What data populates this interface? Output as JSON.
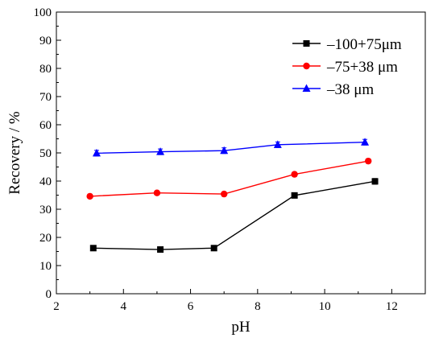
{
  "chart_data": {
    "type": "line",
    "xlabel": "pH",
    "ylabel": "Recovery / %",
    "xlim": [
      2,
      13
    ],
    "ylim": [
      0,
      100
    ],
    "xticks": [
      2,
      4,
      6,
      8,
      10,
      12
    ],
    "yticks": [
      0,
      10,
      20,
      30,
      40,
      50,
      60,
      70,
      80,
      90,
      100
    ],
    "grid": false,
    "legend_position": "top-right",
    "series": [
      {
        "name": "–100+75μm",
        "color": "#000000",
        "marker": "square",
        "x": [
          3.1,
          5.1,
          6.7,
          9.1,
          11.5
        ],
        "y": [
          16.2,
          15.7,
          16.2,
          34.9,
          39.9
        ],
        "err": [
          0.5,
          0.5,
          0.5,
          0.6,
          1.0
        ]
      },
      {
        "name": "–75+38 μm",
        "color": "#ff0000",
        "marker": "circle",
        "x": [
          3.0,
          5.0,
          7.0,
          9.1,
          11.3
        ],
        "y": [
          34.6,
          35.8,
          35.4,
          42.4,
          47.1
        ],
        "err": [
          0.5,
          0.6,
          0.5,
          0.7,
          0.8
        ]
      },
      {
        "name": "–38 μm",
        "color": "#0000ff",
        "marker": "triangle",
        "x": [
          3.2,
          5.1,
          7.0,
          8.6,
          11.2
        ],
        "y": [
          49.9,
          50.4,
          50.8,
          52.9,
          53.8
        ],
        "err": [
          1.0,
          1.0,
          1.0,
          1.0,
          1.0
        ]
      }
    ]
  }
}
